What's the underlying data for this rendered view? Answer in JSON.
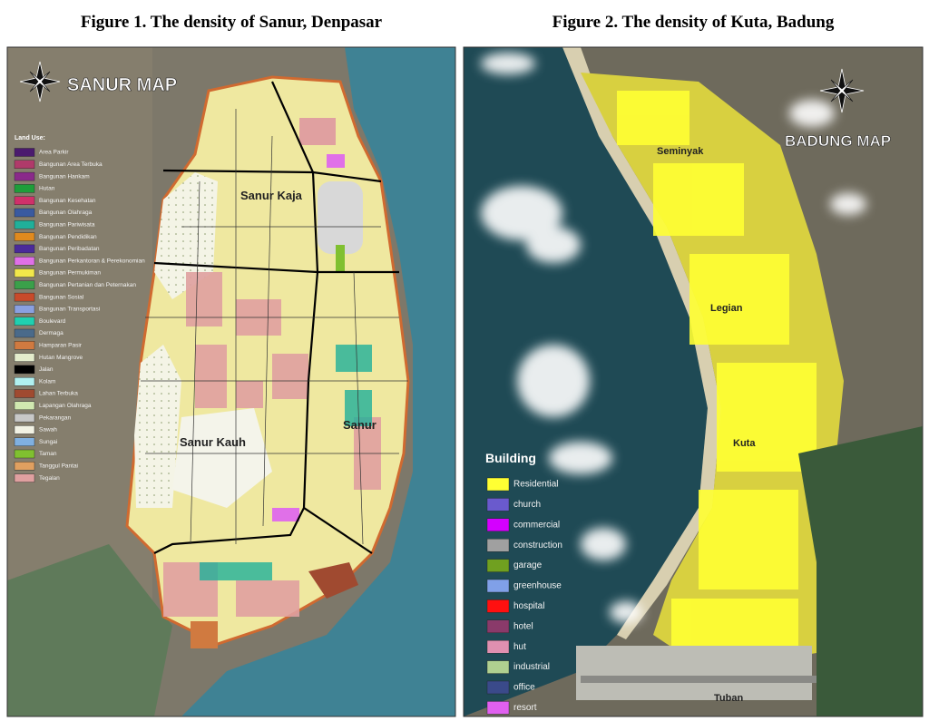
{
  "figures": [
    {
      "title": "Figure 1. The density of Sanur, Denpasar",
      "map_title": "SANUR MAP",
      "legend_title": "Land Use:",
      "legend": [
        {
          "label": "Area Parkir",
          "color": "#4b1a6e"
        },
        {
          "label": "Bangunan Area Terbuka",
          "color": "#b03a6a"
        },
        {
          "label": "Bangunan Hankam",
          "color": "#8a2a8a"
        },
        {
          "label": "Hutan",
          "color": "#1e9e3a"
        },
        {
          "label": "Bangunan Kesehatan",
          "color": "#d0306a"
        },
        {
          "label": "Bangunan Olahraga",
          "color": "#3a5aa0"
        },
        {
          "label": "Bangunan Pariwisata",
          "color": "#20b09a"
        },
        {
          "label": "Bangunan Pendidikan",
          "color": "#e08a1e"
        },
        {
          "label": "Bangunan Peribadatan",
          "color": "#4a2a9a"
        },
        {
          "label": "Bangunan Perkantoran & Perekonomian",
          "color": "#e070e8"
        },
        {
          "label": "Bangunan Permukiman",
          "color": "#f2e84a"
        },
        {
          "label": "Bangunan Pertanian dan Peternakan",
          "color": "#3aa04a"
        },
        {
          "label": "Bangunan Sosial",
          "color": "#c84a2a"
        },
        {
          "label": "Bangunan Transportasi",
          "color": "#8aa0e0"
        },
        {
          "label": "Boulevard",
          "color": "#20d0b0"
        },
        {
          "label": "Dermaga",
          "color": "#4a6a8a"
        },
        {
          "label": "Hamparan Pasir",
          "color": "#d07a40"
        },
        {
          "label": "Hutan Mangrove",
          "color": "#e4eccc"
        },
        {
          "label": "Jalan",
          "color": "#000000"
        },
        {
          "label": "Kolam",
          "color": "#b0f0f0"
        },
        {
          "label": "Lahan Terbuka",
          "color": "#a04a30"
        },
        {
          "label": "Lapangan Olahraga",
          "color": "#d0e8b0"
        },
        {
          "label": "Pekarangan",
          "color": "#c8c8c8"
        },
        {
          "label": "Sawah",
          "color": "#f2f2e4"
        },
        {
          "label": "Sungai",
          "color": "#80b0e0"
        },
        {
          "label": "Taman",
          "color": "#80c030"
        },
        {
          "label": "Tanggul Pantai",
          "color": "#e0a060"
        },
        {
          "label": "Tegalan",
          "color": "#e0a0a0"
        }
      ],
      "places": [
        "Sanur Kaja",
        "Sanur",
        "Sanur Kauh"
      ]
    },
    {
      "title": "Figure 2. The density of Kuta, Badung",
      "map_title": "BADUNG MAP",
      "legend_title": "Building",
      "legend": [
        {
          "label": "Residential",
          "color": "#ffff33"
        },
        {
          "label": "church",
          "color": "#6a5acd"
        },
        {
          "label": "commercial",
          "color": "#d400ff"
        },
        {
          "label": "construction",
          "color": "#a0a0a0"
        },
        {
          "label": "garage",
          "color": "#70a020"
        },
        {
          "label": "greenhouse",
          "color": "#80a0e8"
        },
        {
          "label": "hospital",
          "color": "#ff1010"
        },
        {
          "label": "hotel",
          "color": "#8a3a6a"
        },
        {
          "label": "hut",
          "color": "#e090b0"
        },
        {
          "label": "industrial",
          "color": "#b0d090"
        },
        {
          "label": "office",
          "color": "#3a4a8a"
        },
        {
          "label": "resort",
          "color": "#e060f0"
        }
      ],
      "places": [
        "Seminyak",
        "Legian",
        "Kuta",
        "Tuban"
      ]
    }
  ]
}
